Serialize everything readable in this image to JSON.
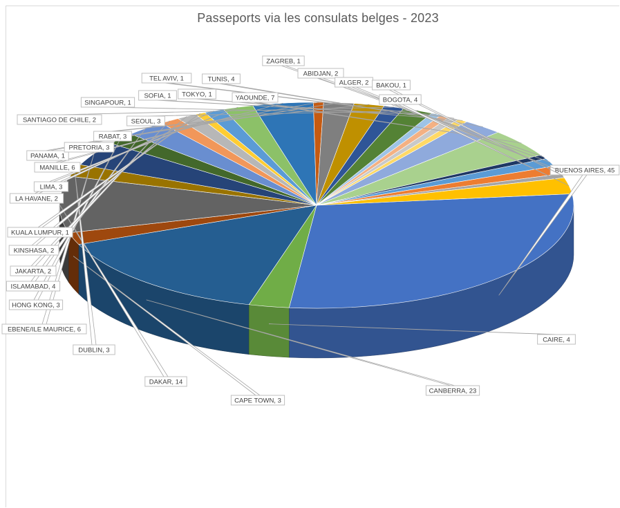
{
  "chart_data": {
    "type": "pie",
    "variant": "3d",
    "title": "Passeports via les consulats belges - 2023",
    "slices": [
      {
        "label": "BUENOS AIRES, 45",
        "value": 45,
        "color": "#4472c4"
      },
      {
        "label": "CAIRE, 4",
        "value": 4,
        "color": "#70ad47"
      },
      {
        "label": "CANBERRA, 23",
        "value": 23,
        "color": "#255e91"
      },
      {
        "label": "CAPE TOWN, 3",
        "value": 3,
        "color": "#9e480e"
      },
      {
        "label": "DAKAR, 14",
        "value": 14,
        "color": "#636363"
      },
      {
        "label": "DUBLIN, 3",
        "value": 3,
        "color": "#997300"
      },
      {
        "label": "EBENE/ILE MAURICE, 6",
        "value": 6,
        "color": "#264478"
      },
      {
        "label": "HONG KONG, 3",
        "value": 3,
        "color": "#43682b"
      },
      {
        "label": "ISLAMABAD, 4",
        "value": 4,
        "color": "#698ed0"
      },
      {
        "label": "JAKARTA, 2",
        "value": 2,
        "color": "#f1975a"
      },
      {
        "label": "KINSHASA, 2",
        "value": 2,
        "color": "#b7b7b7"
      },
      {
        "label": "KUALA LUMPUR, 1",
        "value": 1,
        "color": "#ffcd33"
      },
      {
        "label": "LA HAVANE, 2",
        "value": 2,
        "color": "#5b9bd5"
      },
      {
        "label": "LIMA, 3",
        "value": 3,
        "color": "#8cc168"
      },
      {
        "label": "MANILLE, 6",
        "value": 6,
        "color": "#2e75b6"
      },
      {
        "label": "PANAMA, 1",
        "value": 1,
        "color": "#c55a11"
      },
      {
        "label": "PRETORIA, 3",
        "value": 3,
        "color": "#7f7f7f"
      },
      {
        "label": "RABAT, 3",
        "value": 3,
        "color": "#bf9000"
      },
      {
        "label": "SANTIAGO DE CHILE, 2",
        "value": 2,
        "color": "#2f5597"
      },
      {
        "label": "SEOUL, 3",
        "value": 3,
        "color": "#548235"
      },
      {
        "label": "SINGAPOUR, 1",
        "value": 1,
        "color": "#9dc3e6"
      },
      {
        "label": "SOFIA, 1",
        "value": 1,
        "color": "#f4b183"
      },
      {
        "label": "TEL AVIV, 1",
        "value": 1,
        "color": "#c9c9c9"
      },
      {
        "label": "TOKYO, 1",
        "value": 1,
        "color": "#ffd966"
      },
      {
        "label": "TUNIS, 4",
        "value": 4,
        "color": "#8faadc"
      },
      {
        "label": "YAOUNDE, 7",
        "value": 7,
        "color": "#a9d18e"
      },
      {
        "label": "ZAGREB, 1",
        "value": 1,
        "color": "#1f3864"
      },
      {
        "label": "ABIDJAN, 2",
        "value": 2,
        "color": "#5b9bd5"
      },
      {
        "label": "ALGER, 2",
        "value": 2,
        "color": "#ed7d31"
      },
      {
        "label": "BAKOU, 1",
        "value": 1,
        "color": "#a5a5a5"
      },
      {
        "label": "BOGOTA, 4",
        "value": 4,
        "color": "#ffc000"
      }
    ],
    "legend": "none"
  }
}
